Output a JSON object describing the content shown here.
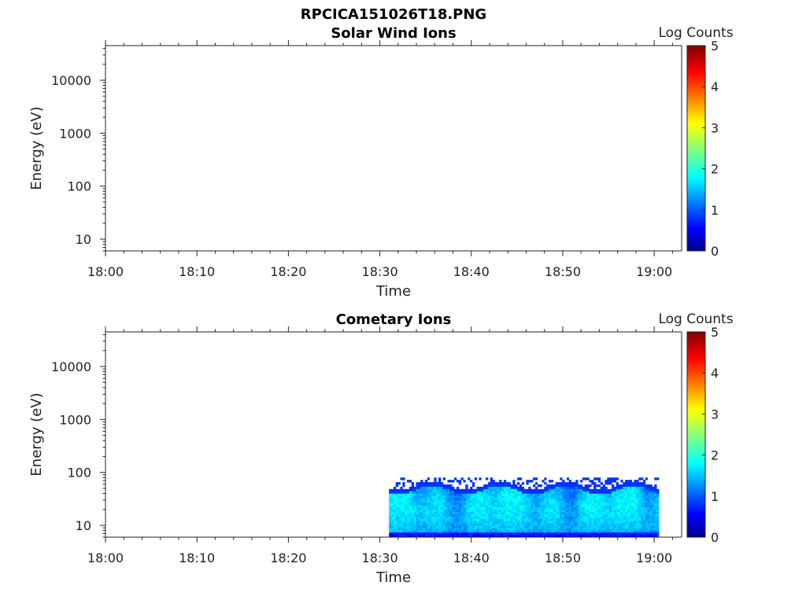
{
  "figure": {
    "title": "RPCICA151026T18.PNG"
  },
  "colorscale": [
    "#00008f",
    "#0000ff",
    "#0080ff",
    "#00ffff",
    "#80ff80",
    "#ffff00",
    "#ff8000",
    "#ff0000",
    "#800000"
  ],
  "chart_data": [
    {
      "type": "heatmap",
      "title": "Solar Wind Ions",
      "xlabel": "Time",
      "ylabel": "Energy (eV)",
      "y_scale": "log",
      "ylim": [
        6,
        45000
      ],
      "xlim": [
        "18:00",
        "19:03"
      ],
      "x_ticks": [
        "18:00",
        "18:10",
        "18:20",
        "18:30",
        "18:40",
        "18:50",
        "19:00"
      ],
      "y_ticks": [
        "10",
        "100",
        "1000",
        "10000"
      ],
      "colorbar": {
        "label": "Log Counts",
        "range": [
          0,
          5
        ],
        "ticks": [
          "0",
          "1",
          "2",
          "3",
          "4",
          "5"
        ]
      },
      "data_extent": null
    },
    {
      "type": "heatmap",
      "title": "Cometary Ions",
      "xlabel": "Time",
      "ylabel": "Energy (eV)",
      "y_scale": "log",
      "ylim": [
        6,
        45000
      ],
      "xlim": [
        "18:00",
        "19:03"
      ],
      "x_ticks": [
        "18:00",
        "18:10",
        "18:20",
        "18:30",
        "18:40",
        "18:50",
        "19:00"
      ],
      "y_ticks": [
        "10",
        "100",
        "1000",
        "10000"
      ],
      "colorbar": {
        "label": "Log Counts",
        "range": [
          0,
          5
        ],
        "ticks": [
          "0",
          "1",
          "2",
          "3",
          "4",
          "5"
        ]
      },
      "data_extent": {
        "time": [
          "18:31",
          "19:00.5"
        ],
        "energy_eV": [
          6,
          80
        ],
        "typical_log_counts": [
          0.5,
          2.2
        ]
      }
    }
  ]
}
